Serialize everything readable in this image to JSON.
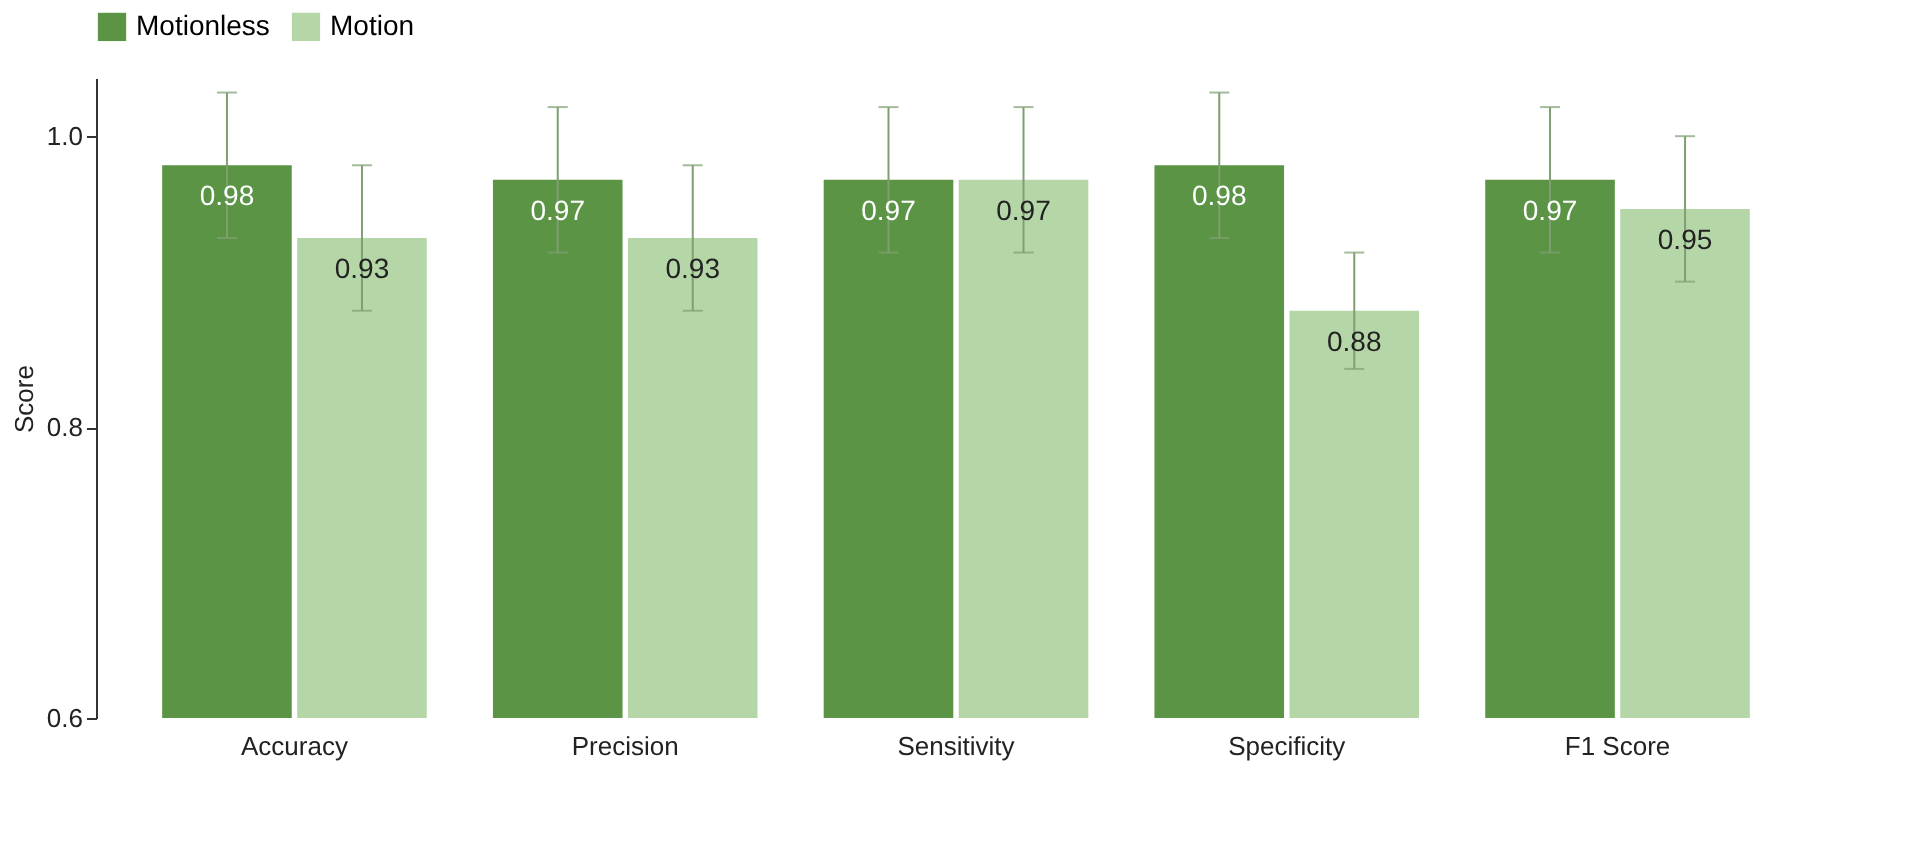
{
  "chart_data": {
    "type": "bar",
    "ylabel": "Score",
    "categories": [
      "Accuracy",
      "Precision",
      "Sensitivity",
      "Specificity",
      "F1 Score"
    ],
    "series": [
      {
        "name": "Motionless",
        "color": "#5b9445",
        "values": [
          0.98,
          0.97,
          0.97,
          0.98,
          0.97
        ],
        "errors": [
          [
            0.93,
            1.03
          ],
          [
            0.92,
            1.02
          ],
          [
            0.92,
            1.02
          ],
          [
            0.93,
            1.03
          ],
          [
            0.92,
            1.02
          ]
        ]
      },
      {
        "name": "Motion",
        "color": "#b5d7a8",
        "values": [
          0.93,
          0.93,
          0.97,
          0.88,
          0.95
        ],
        "errors": [
          [
            0.88,
            0.98
          ],
          [
            0.88,
            0.98
          ],
          [
            0.92,
            1.02
          ],
          [
            0.84,
            0.92
          ],
          [
            0.9,
            1.0
          ]
        ]
      }
    ],
    "ylim": [
      0.6,
      1.04
    ],
    "yticks": [
      0.6,
      0.8,
      {
        "value": 1.0,
        "label": "1.0"
      }
    ],
    "grid": false,
    "legend": "top",
    "data_labels": true
  }
}
